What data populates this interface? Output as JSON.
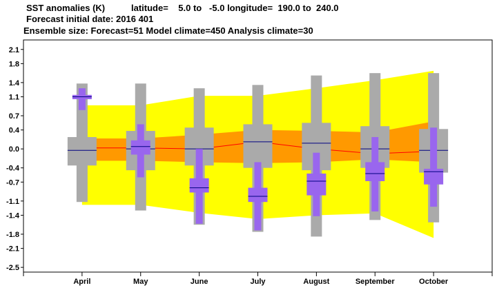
{
  "header": {
    "line1_title": "SST anomalies (K)",
    "line1_coords": "latitude=    5.0 to   -5.0 longitude=  190.0 to  240.0",
    "line2": "Forecast initial date: 2016 401",
    "line3": "Ensemble size: Forecast=51 Model climate=450 Analysis climate=30"
  },
  "chart_data": {
    "type": "box",
    "title": "SST anomalies (K)",
    "categories": [
      "April",
      "May",
      "June",
      "July",
      "August",
      "September",
      "October"
    ],
    "ylim": [
      -2.6,
      2.3
    ],
    "yticks": [
      2.1,
      1.8,
      1.4,
      1.1,
      0.7,
      0.4,
      0.0,
      -0.4,
      -0.7,
      -1.1,
      -1.4,
      -1.8,
      -2.1,
      -2.5
    ],
    "ytick_labels": [
      "2.1",
      "1.8",
      "1.4",
      "1.1",
      "0.7",
      "0.4",
      "0.0",
      "-0.4",
      "-0.7",
      "-1.1",
      "-1.4",
      "-1.8",
      "-2.1",
      "-2.5"
    ],
    "grid": false,
    "series": [
      {
        "role": "model_climate_band_outer",
        "color": "#ffff00",
        "upper": [
          0.92,
          0.92,
          1.12,
          1.12,
          1.28,
          1.45,
          1.65
        ],
        "lower": [
          -1.18,
          -1.18,
          -1.35,
          -1.48,
          -1.4,
          -1.36,
          -1.88
        ]
      },
      {
        "role": "model_climate_band_inner",
        "color": "#ff9900",
        "upper": [
          0.22,
          0.22,
          0.3,
          0.4,
          0.38,
          0.35,
          0.58
        ],
        "lower": [
          -0.25,
          -0.25,
          -0.28,
          -0.3,
          -0.28,
          -0.22,
          -0.28
        ]
      },
      {
        "role": "model_climate_median",
        "color": "#ff0000",
        "values": [
          0.02,
          0.02,
          0.0,
          0.15,
          0.0,
          -0.1,
          -0.05
        ]
      },
      {
        "role": "analysis_climate",
        "color": "#aaaaaa",
        "whisker_low": [
          -1.12,
          -1.3,
          -1.6,
          -1.75,
          -1.85,
          -1.5,
          -1.55
        ],
        "p10": [
          -0.35,
          -0.45,
          -0.35,
          -0.4,
          -0.45,
          -0.4,
          -0.5
        ],
        "median": [
          -0.03,
          0.0,
          0.0,
          0.15,
          0.12,
          0.0,
          -0.03
        ],
        "p90": [
          0.25,
          0.38,
          0.45,
          0.52,
          0.55,
          0.48,
          0.42
        ],
        "whisker_high": [
          1.38,
          1.38,
          1.28,
          1.35,
          1.55,
          1.6,
          1.6
        ]
      },
      {
        "role": "forecast",
        "color": "#9966ee",
        "whisker_low": [
          0.82,
          -0.6,
          -1.58,
          -1.72,
          -1.42,
          -1.32,
          -1.22
        ],
        "p10": [
          1.05,
          -0.12,
          -0.92,
          -1.12,
          -0.98,
          -0.68,
          -0.75
        ],
        "median": [
          1.1,
          0.05,
          -0.82,
          -1.0,
          -0.68,
          -0.52,
          -0.48
        ],
        "p90": [
          1.14,
          0.18,
          -0.62,
          -0.82,
          -0.52,
          -0.28,
          -0.42
        ],
        "whisker_high": [
          1.28,
          0.52,
          0.0,
          -0.28,
          -0.08,
          0.25,
          0.45
        ]
      }
    ]
  }
}
